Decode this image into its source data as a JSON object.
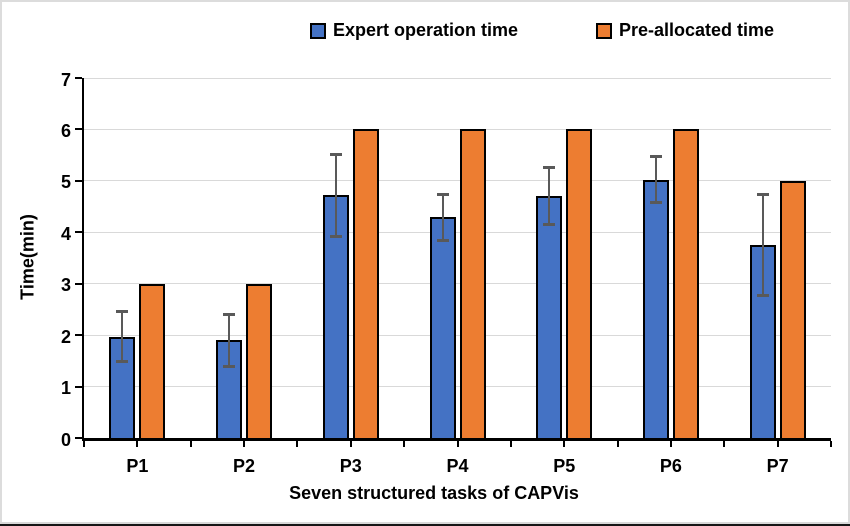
{
  "legend": {
    "items": [
      {
        "label": "Expert operation time",
        "color": "#4472C4"
      },
      {
        "label": "Pre-allocated time",
        "color": "#ED7D31"
      }
    ]
  },
  "chart_data": {
    "type": "bar",
    "title": "",
    "xlabel": "Seven structured tasks of CAPVis",
    "ylabel": "Time(min)",
    "categories": [
      "P1",
      "P2",
      "P3",
      "P4",
      "P5",
      "P6",
      "P7"
    ],
    "series": [
      {
        "name": "Expert operation time",
        "color": "#4472C4",
        "values": [
          1.97,
          1.9,
          4.72,
          4.29,
          4.71,
          5.02,
          3.76
        ],
        "error": [
          0.5,
          0.52,
          0.81,
          0.45,
          0.56,
          0.46,
          0.99
        ],
        "error_color": "#595959"
      },
      {
        "name": "Pre-allocated time",
        "color": "#ED7D31",
        "values": [
          3,
          3,
          6,
          6,
          6,
          6,
          5
        ]
      }
    ],
    "ylim": [
      0,
      7
    ],
    "yticks": [
      0,
      1,
      2,
      3,
      4,
      5,
      6,
      7
    ],
    "grid": true,
    "legend_position": "top",
    "gridline_color": "#D9D9D9",
    "axis_color": "#000000",
    "bar_border_color": "#000000",
    "text_color": "#000000"
  },
  "frame": {
    "border_color": "#DCDCDC",
    "bottom_line_color": "#161616",
    "background": "#FFFFFF"
  }
}
